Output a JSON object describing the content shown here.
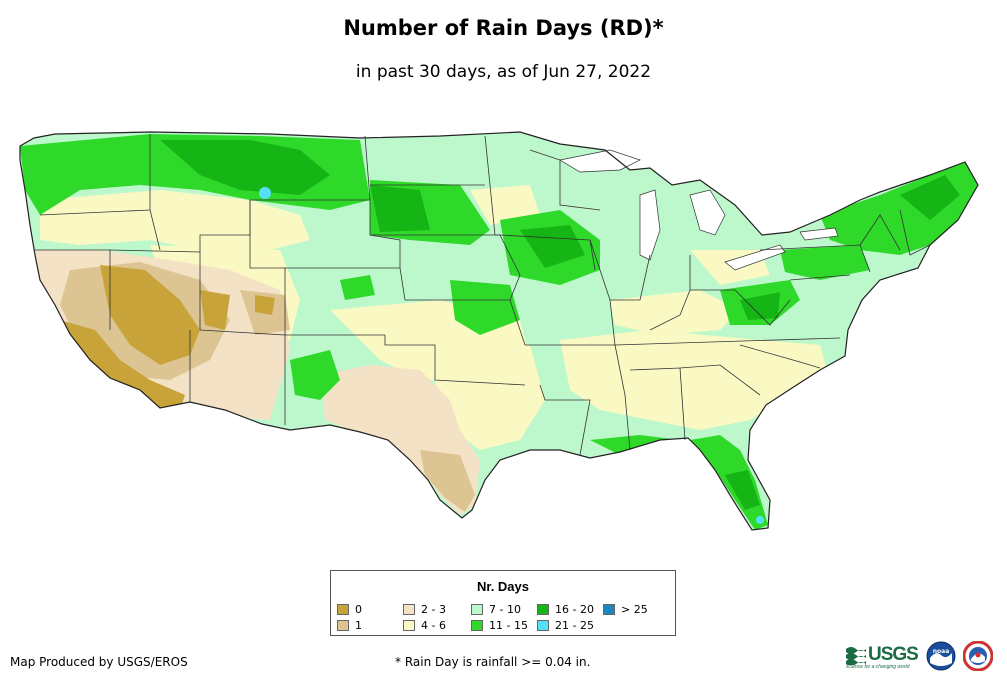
{
  "header": {
    "title": "Number of Rain Days (RD)*",
    "subtitle": "in past 30 days, as of Jun 27, 2022"
  },
  "map": {
    "region": "Contiguous United States",
    "colors": {
      "zero": "#c8a33a",
      "one": "#dcc592",
      "two_three": "#f3e2c6",
      "four_six": "#fbf9c3",
      "seven_ten": "#bdf7cc",
      "eleven_fifteen": "#2ed92a",
      "sixteen_twenty": "#14b514",
      "twentyone_twentyfive": "#54e0f5",
      "over_25": "#1b86c0",
      "border": "#333333"
    }
  },
  "legend": {
    "title": "Nr. Days",
    "items": [
      {
        "label": "0",
        "color": "#c8a33a"
      },
      {
        "label": "1",
        "color": "#dcc592"
      },
      {
        "label": "2 - 3",
        "color": "#f3e2c6"
      },
      {
        "label": "4 - 6",
        "color": "#fbf9c3"
      },
      {
        "label": "7 - 10",
        "color": "#bdf7cc"
      },
      {
        "label": "11 - 15",
        "color": "#2ed92a"
      },
      {
        "label": "16 - 20",
        "color": "#14b514"
      },
      {
        "label": "21 - 25",
        "color": "#54e0f5"
      },
      {
        "label": "> 25",
        "color": "#1b86c0"
      }
    ]
  },
  "footer": {
    "credit": "Map Produced by USGS/EROS",
    "footnote": "* Rain Day is rainfall >= 0.04 in.",
    "logos": {
      "usgs": "USGS",
      "usgs_tagline": "science for a changing world",
      "noaa": "noaa",
      "nws_icon": "national-weather-service-seal-icon"
    }
  }
}
